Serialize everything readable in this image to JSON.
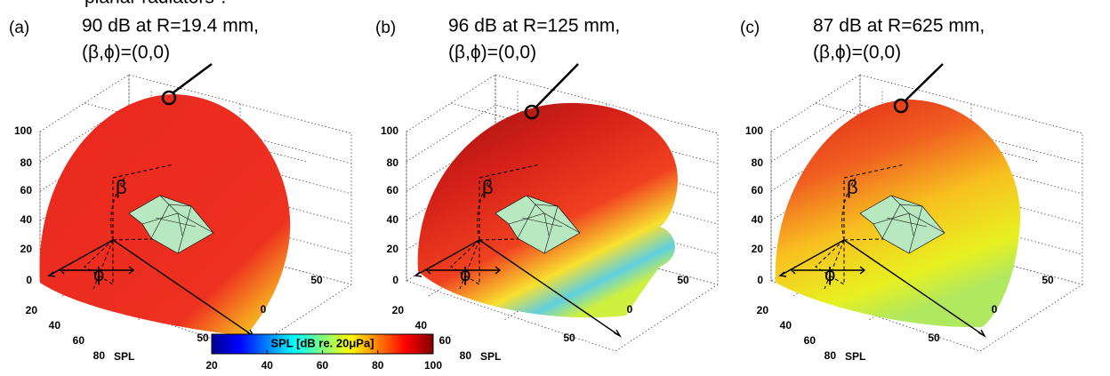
{
  "caption_fragment": "planar radiators\".",
  "panels": [
    {
      "label": "(a)",
      "annotation": [
        "90 dB at R=19.4 mm,",
        "(β,ϕ)=(0,0)"
      ]
    },
    {
      "label": "(b)",
      "annotation": [
        "96 dB at R=125 mm,",
        "(β,ϕ)=(0,0)"
      ]
    },
    {
      "label": "(c)",
      "annotation": [
        "87 dB at R=625 mm,",
        "(β,ϕ)=(0,0)"
      ]
    }
  ],
  "axes": {
    "z_ticks": [
      0,
      20,
      40,
      60,
      80,
      100
    ],
    "depth_ticks": [
      20,
      40,
      60,
      80
    ],
    "depth_label": "SPL",
    "width_ticks": [
      50,
      0,
      50
    ],
    "beta_symbol": "β",
    "phi_symbol": "ϕ"
  },
  "colorbar": {
    "label": "SPL [dB re. 20μPa]",
    "range": [
      20,
      100
    ],
    "ticks": [
      20,
      40,
      60,
      80,
      100
    ]
  }
}
